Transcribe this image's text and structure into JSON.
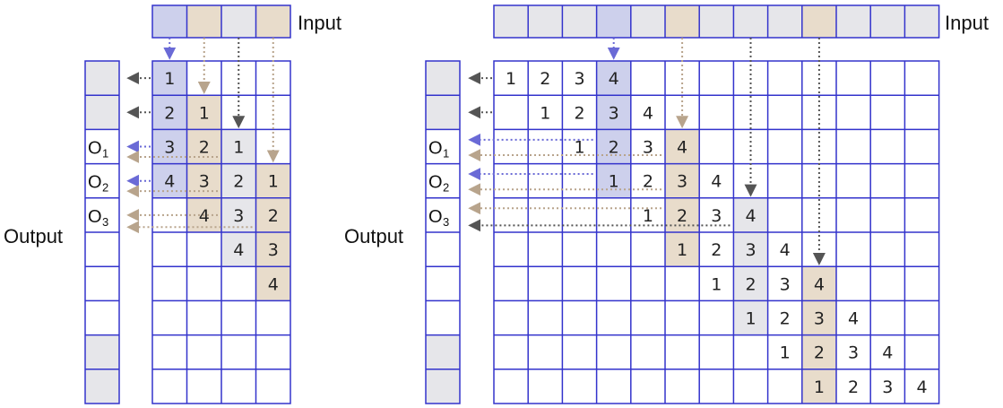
{
  "labels": {
    "input": "Input",
    "output": "Output",
    "o_letter": "O",
    "o_subs": [
      "1",
      "2",
      "3"
    ]
  },
  "colors": {
    "grid": "#3333cc",
    "fill_gray": "#e6e6ea",
    "fill_tan": "#e8dccb",
    "fill_blue": "#cdd0ec",
    "arrow_blue": "#6a6ad6",
    "arrow_tan": "#b8a48c",
    "arrow_gray": "#555555"
  },
  "left_panel": {
    "input_fills": [
      "blue",
      "tan",
      "gray",
      "tan"
    ],
    "kernel_runs": [
      {
        "values": [
          "1",
          "2",
          "3",
          "4"
        ],
        "fill": "blue"
      },
      {
        "values": [
          "1",
          "2",
          "3",
          "4"
        ],
        "fill": "tan"
      },
      {
        "values": [
          "1",
          "2",
          "3",
          "4"
        ],
        "fill": "gray"
      },
      {
        "values": [
          "1",
          "2",
          "3",
          "4"
        ],
        "fill": "tan"
      }
    ],
    "output_fills": [
      "gray",
      "gray",
      "none",
      "none",
      "none",
      "none",
      "none",
      "none",
      "gray",
      "gray"
    ],
    "output_labels": [
      {
        "row": 2,
        "sub": "1"
      },
      {
        "row": 3,
        "sub": "2"
      },
      {
        "row": 4,
        "sub": "3"
      }
    ]
  },
  "right_panel": {
    "input_fills": [
      "gray",
      "gray",
      "gray",
      "blue",
      "gray",
      "tan",
      "gray",
      "gray",
      "gray",
      "tan",
      "gray",
      "gray",
      "gray"
    ],
    "kernel_runs": [
      {
        "values": [
          "1",
          "2",
          "3",
          "4"
        ]
      },
      {
        "values": [
          "1",
          "2",
          "3",
          "4"
        ]
      },
      {
        "values": [
          "1",
          "2",
          "3",
          "4"
        ]
      },
      {
        "values": [
          "1",
          "2",
          "3",
          "4"
        ]
      },
      {
        "values": [
          "1",
          "2",
          "3",
          "4"
        ]
      },
      {
        "values": [
          "1",
          "2",
          "3",
          "4"
        ]
      },
      {
        "values": [
          "1",
          "2",
          "3",
          "4"
        ]
      },
      {
        "values": [
          "1",
          "2",
          "3",
          "4"
        ]
      },
      {
        "values": [
          "1",
          "2",
          "3",
          "4"
        ]
      },
      {
        "values": [
          "1",
          "2",
          "3",
          "4"
        ]
      }
    ],
    "output_fills": [
      "gray",
      "gray",
      "none",
      "none",
      "none",
      "none",
      "none",
      "none",
      "gray",
      "gray"
    ],
    "output_labels": [
      {
        "row": 2,
        "sub": "1"
      },
      {
        "row": 3,
        "sub": "2"
      },
      {
        "row": 4,
        "sub": "3"
      }
    ]
  }
}
